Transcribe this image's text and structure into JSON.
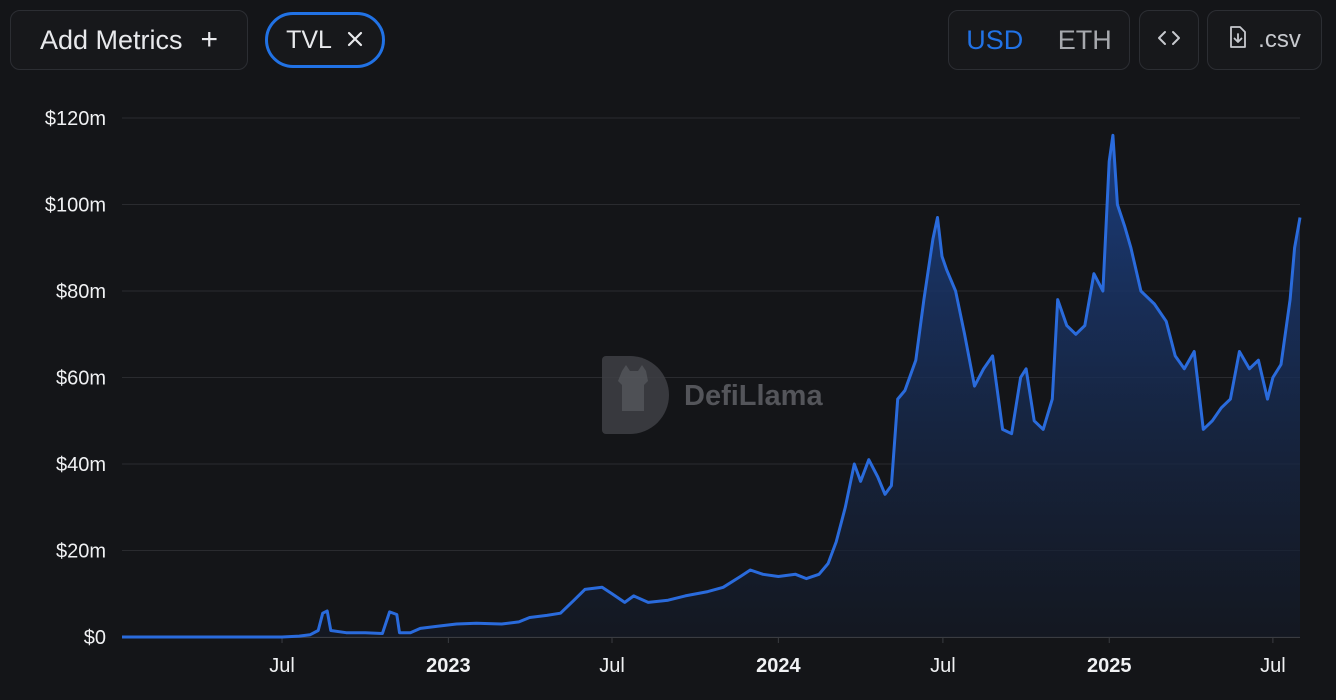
{
  "toolbar": {
    "add_metrics_label": "Add Metrics",
    "add_icon": "plus-icon",
    "active_metric": "TVL",
    "remove_icon": "close-icon",
    "currency_options": [
      "USD",
      "ETH"
    ],
    "selected_currency": "USD",
    "embed_icon": "code-icon",
    "csv_label": ".csv",
    "csv_icon": "file-download-icon"
  },
  "watermark": {
    "text": "DefiLlama",
    "icon": "llama-logo-icon"
  },
  "colors": {
    "background": "#141518",
    "accent": "#2172e5",
    "line": "#2a6bdc",
    "grid": "#2a2b2f"
  },
  "chart_data": {
    "type": "area",
    "title": "",
    "xlabel": "",
    "ylabel": "",
    "ylim": [
      0,
      120
    ],
    "y_unit": "$m",
    "y_ticks": [
      "$0",
      "$20m",
      "$40m",
      "$60m",
      "$80m",
      "$100m",
      "$120m"
    ],
    "y_tick_values": [
      0,
      20,
      40,
      60,
      80,
      100,
      120
    ],
    "x_range": [
      "2022-01-05",
      "2025-07-31"
    ],
    "x_ticks": [
      {
        "label": "Jul",
        "date": "2022-07-01",
        "bold": false
      },
      {
        "label": "2023",
        "date": "2023-01-01",
        "bold": true
      },
      {
        "label": "Jul",
        "date": "2023-07-01",
        "bold": false
      },
      {
        "label": "2024",
        "date": "2024-01-01",
        "bold": true
      },
      {
        "label": "Jul",
        "date": "2024-07-01",
        "bold": false
      },
      {
        "label": "2025",
        "date": "2025-01-01",
        "bold": true
      },
      {
        "label": "Jul",
        "date": "2025-07-01",
        "bold": false
      }
    ],
    "grid": true,
    "series": [
      {
        "values": [
          [
            "2022-01-05",
            0
          ],
          [
            "2022-04-01",
            0
          ],
          [
            "2022-07-01",
            0
          ],
          [
            "2022-07-20",
            0.2
          ],
          [
            "2022-08-01",
            0.5
          ],
          [
            "2022-08-10",
            1.5
          ],
          [
            "2022-08-15",
            5.5
          ],
          [
            "2022-08-20",
            6
          ],
          [
            "2022-08-24",
            1.5
          ],
          [
            "2022-09-10",
            1
          ],
          [
            "2022-10-01",
            1
          ],
          [
            "2022-10-20",
            0.8
          ],
          [
            "2022-10-28",
            5.8
          ],
          [
            "2022-11-05",
            5.2
          ],
          [
            "2022-11-08",
            1
          ],
          [
            "2022-11-20",
            1
          ],
          [
            "2022-12-01",
            2
          ],
          [
            "2022-12-20",
            2.5
          ],
          [
            "2023-01-10",
            3
          ],
          [
            "2023-02-01",
            3.2
          ],
          [
            "2023-03-01",
            3
          ],
          [
            "2023-03-20",
            3.5
          ],
          [
            "2023-04-01",
            4.5
          ],
          [
            "2023-04-20",
            5
          ],
          [
            "2023-05-05",
            5.5
          ],
          [
            "2023-05-20",
            8.5
          ],
          [
            "2023-06-01",
            11
          ],
          [
            "2023-06-20",
            11.5
          ],
          [
            "2023-07-01",
            10
          ],
          [
            "2023-07-15",
            8
          ],
          [
            "2023-07-25",
            9.5
          ],
          [
            "2023-08-10",
            8
          ],
          [
            "2023-09-01",
            8.5
          ],
          [
            "2023-09-20",
            9.5
          ],
          [
            "2023-10-15",
            10.5
          ],
          [
            "2023-11-01",
            11.5
          ],
          [
            "2023-11-20",
            14
          ],
          [
            "2023-12-01",
            15.5
          ],
          [
            "2023-12-15",
            14.5
          ],
          [
            "2024-01-01",
            14
          ],
          [
            "2024-01-20",
            14.5
          ],
          [
            "2024-02-01",
            13.5
          ],
          [
            "2024-02-15",
            14.5
          ],
          [
            "2024-02-25",
            17
          ],
          [
            "2024-03-05",
            22
          ],
          [
            "2024-03-15",
            30
          ],
          [
            "2024-03-25",
            40
          ],
          [
            "2024-04-01",
            36
          ],
          [
            "2024-04-10",
            41
          ],
          [
            "2024-04-20",
            37
          ],
          [
            "2024-04-28",
            33
          ],
          [
            "2024-05-05",
            35
          ],
          [
            "2024-05-12",
            55
          ],
          [
            "2024-05-20",
            57
          ],
          [
            "2024-06-01",
            64
          ],
          [
            "2024-06-10",
            78
          ],
          [
            "2024-06-20",
            92
          ],
          [
            "2024-06-25",
            97
          ],
          [
            "2024-06-30",
            88
          ],
          [
            "2024-07-05",
            85
          ],
          [
            "2024-07-15",
            80
          ],
          [
            "2024-07-25",
            70
          ],
          [
            "2024-08-05",
            58
          ],
          [
            "2024-08-15",
            62
          ],
          [
            "2024-08-25",
            65
          ],
          [
            "2024-09-05",
            48
          ],
          [
            "2024-09-15",
            47
          ],
          [
            "2024-09-25",
            60
          ],
          [
            "2024-10-01",
            62
          ],
          [
            "2024-10-10",
            50
          ],
          [
            "2024-10-20",
            48
          ],
          [
            "2024-10-30",
            55
          ],
          [
            "2024-11-05",
            78
          ],
          [
            "2024-11-15",
            72
          ],
          [
            "2024-11-25",
            70
          ],
          [
            "2024-12-05",
            72
          ],
          [
            "2024-12-15",
            84
          ],
          [
            "2024-12-25",
            80
          ],
          [
            "2025-01-01",
            110
          ],
          [
            "2025-01-05",
            116
          ],
          [
            "2025-01-10",
            100
          ],
          [
            "2025-01-18",
            95
          ],
          [
            "2025-01-25",
            90
          ],
          [
            "2025-02-05",
            80
          ],
          [
            "2025-02-20",
            77
          ],
          [
            "2025-03-05",
            73
          ],
          [
            "2025-03-15",
            65
          ],
          [
            "2025-03-25",
            62
          ],
          [
            "2025-04-05",
            66
          ],
          [
            "2025-04-15",
            48
          ],
          [
            "2025-04-25",
            50
          ],
          [
            "2025-05-05",
            53
          ],
          [
            "2025-05-15",
            55
          ],
          [
            "2025-05-25",
            66
          ],
          [
            "2025-06-05",
            62
          ],
          [
            "2025-06-15",
            64
          ],
          [
            "2025-06-25",
            55
          ],
          [
            "2025-07-01",
            60
          ],
          [
            "2025-07-10",
            63
          ],
          [
            "2025-07-20",
            78
          ],
          [
            "2025-07-25",
            90
          ],
          [
            "2025-07-31",
            97
          ]
        ]
      }
    ]
  }
}
